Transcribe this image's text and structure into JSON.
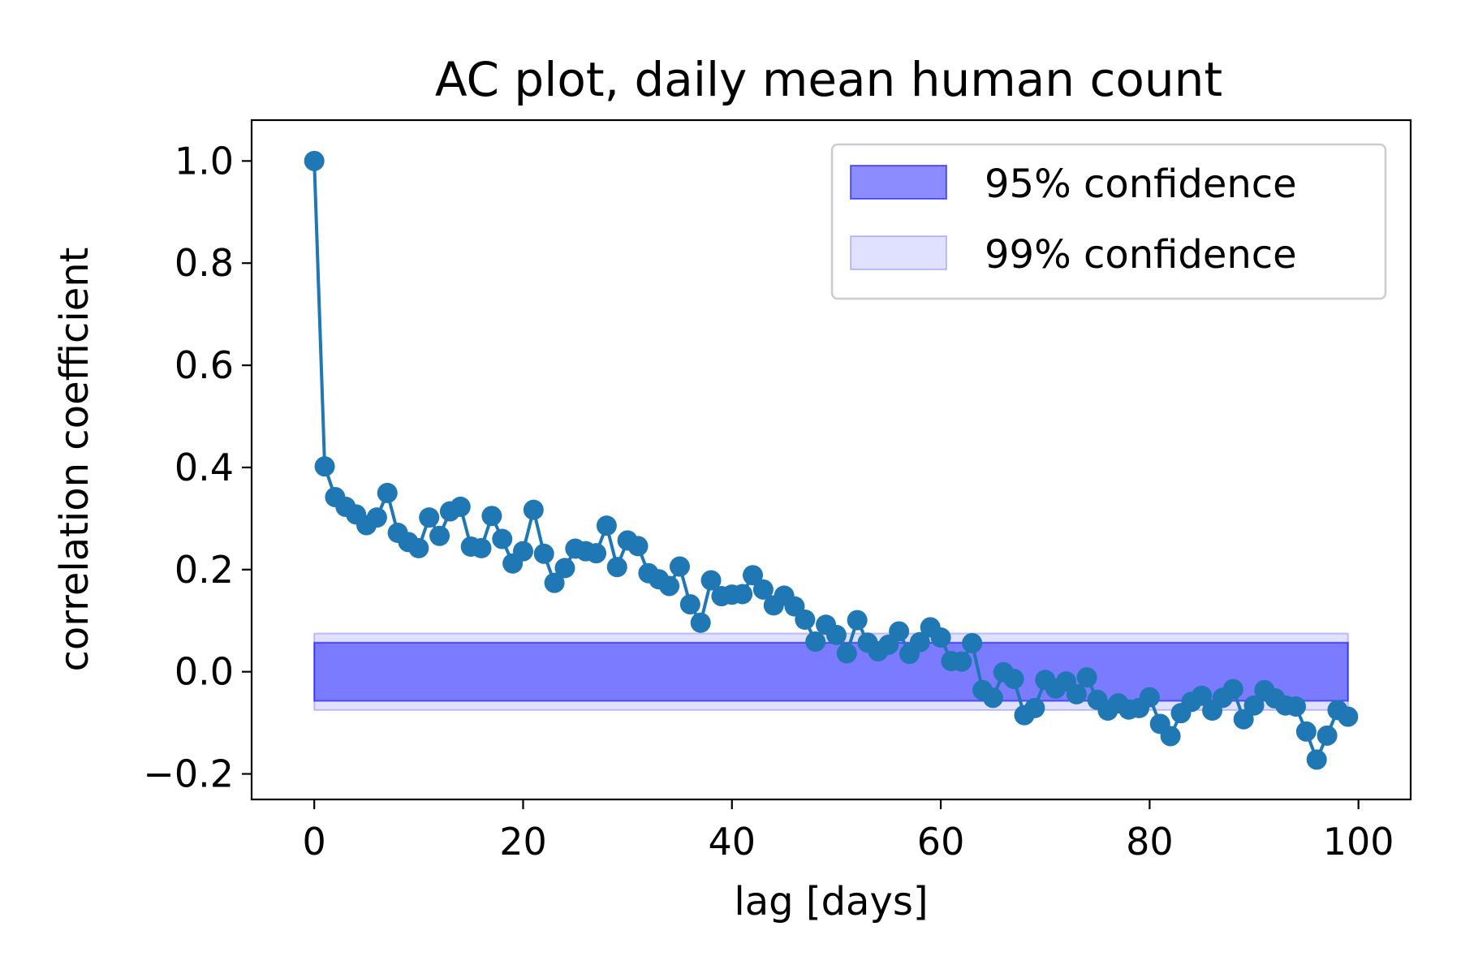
{
  "chart_data": {
    "type": "line",
    "title": "AC plot, daily mean human count",
    "xlabel": "lag [days]",
    "ylabel": "correlation coefficient",
    "xlim": [
      -6,
      105
    ],
    "ylim": [
      -0.25,
      1.08
    ],
    "xticks": [
      0,
      20,
      40,
      60,
      80,
      100
    ],
    "xtick_labels": [
      "0",
      "20",
      "40",
      "60",
      "80",
      "100"
    ],
    "yticks": [
      -0.2,
      0.0,
      0.2,
      0.4,
      0.6,
      0.8,
      1.0
    ],
    "ytick_labels": [
      "−0.2",
      "0.0",
      "0.2",
      "0.4",
      "0.6",
      "0.8",
      "1.0"
    ],
    "grid": false,
    "legend_position": "top-right",
    "series": [
      {
        "name": "",
        "color": "#1f77b4",
        "marker": "circle",
        "x": [
          0,
          1,
          2,
          3,
          4,
          5,
          6,
          7,
          8,
          9,
          10,
          11,
          12,
          13,
          14,
          15,
          16,
          17,
          18,
          19,
          20,
          21,
          22,
          23,
          24,
          25,
          26,
          27,
          28,
          29,
          30,
          31,
          32,
          33,
          34,
          35,
          36,
          37,
          38,
          39,
          40,
          41,
          42,
          43,
          44,
          45,
          46,
          47,
          48,
          49,
          50,
          51,
          52,
          53,
          54,
          55,
          56,
          57,
          58,
          59,
          60,
          61,
          62,
          63,
          64,
          65,
          66,
          67,
          68,
          69,
          70,
          71,
          72,
          73,
          74,
          75,
          76,
          77,
          78,
          79,
          80,
          81,
          82,
          83,
          84,
          85,
          86,
          87,
          88,
          89,
          90,
          91,
          92,
          93,
          94,
          95,
          96,
          97,
          98,
          99
        ],
        "y": [
          1.0,
          0.402,
          0.342,
          0.323,
          0.308,
          0.287,
          0.302,
          0.35,
          0.272,
          0.254,
          0.242,
          0.302,
          0.266,
          0.314,
          0.323,
          0.245,
          0.242,
          0.305,
          0.26,
          0.212,
          0.236,
          0.317,
          0.231,
          0.174,
          0.203,
          0.241,
          0.236,
          0.232,
          0.286,
          0.205,
          0.257,
          0.246,
          0.193,
          0.181,
          0.168,
          0.206,
          0.132,
          0.096,
          0.179,
          0.148,
          0.151,
          0.152,
          0.189,
          0.161,
          0.13,
          0.149,
          0.128,
          0.102,
          0.059,
          0.092,
          0.072,
          0.036,
          0.101,
          0.057,
          0.04,
          0.053,
          0.079,
          0.035,
          0.058,
          0.087,
          0.067,
          0.021,
          0.02,
          0.056,
          -0.036,
          -0.051,
          -0.001,
          -0.014,
          -0.085,
          -0.071,
          -0.016,
          -0.033,
          -0.019,
          -0.044,
          -0.011,
          -0.055,
          -0.076,
          -0.062,
          -0.074,
          -0.071,
          -0.05,
          -0.102,
          -0.126,
          -0.081,
          -0.059,
          -0.047,
          -0.076,
          -0.051,
          -0.034,
          -0.093,
          -0.066,
          -0.036,
          -0.052,
          -0.066,
          -0.068,
          -0.117,
          -0.172,
          -0.125,
          -0.075,
          -0.088
        ]
      }
    ],
    "bands": [
      {
        "name": "95% confidence",
        "x_range": [
          0,
          99
        ],
        "y_range": [
          -0.057,
          0.057
        ],
        "color": "#0000ff",
        "alpha": 0.45
      },
      {
        "name": "99% confidence",
        "x_range": [
          0,
          99
        ],
        "y_range": [
          -0.075,
          0.075
        ],
        "color": "#0000ff",
        "alpha": 0.12
      }
    ]
  }
}
